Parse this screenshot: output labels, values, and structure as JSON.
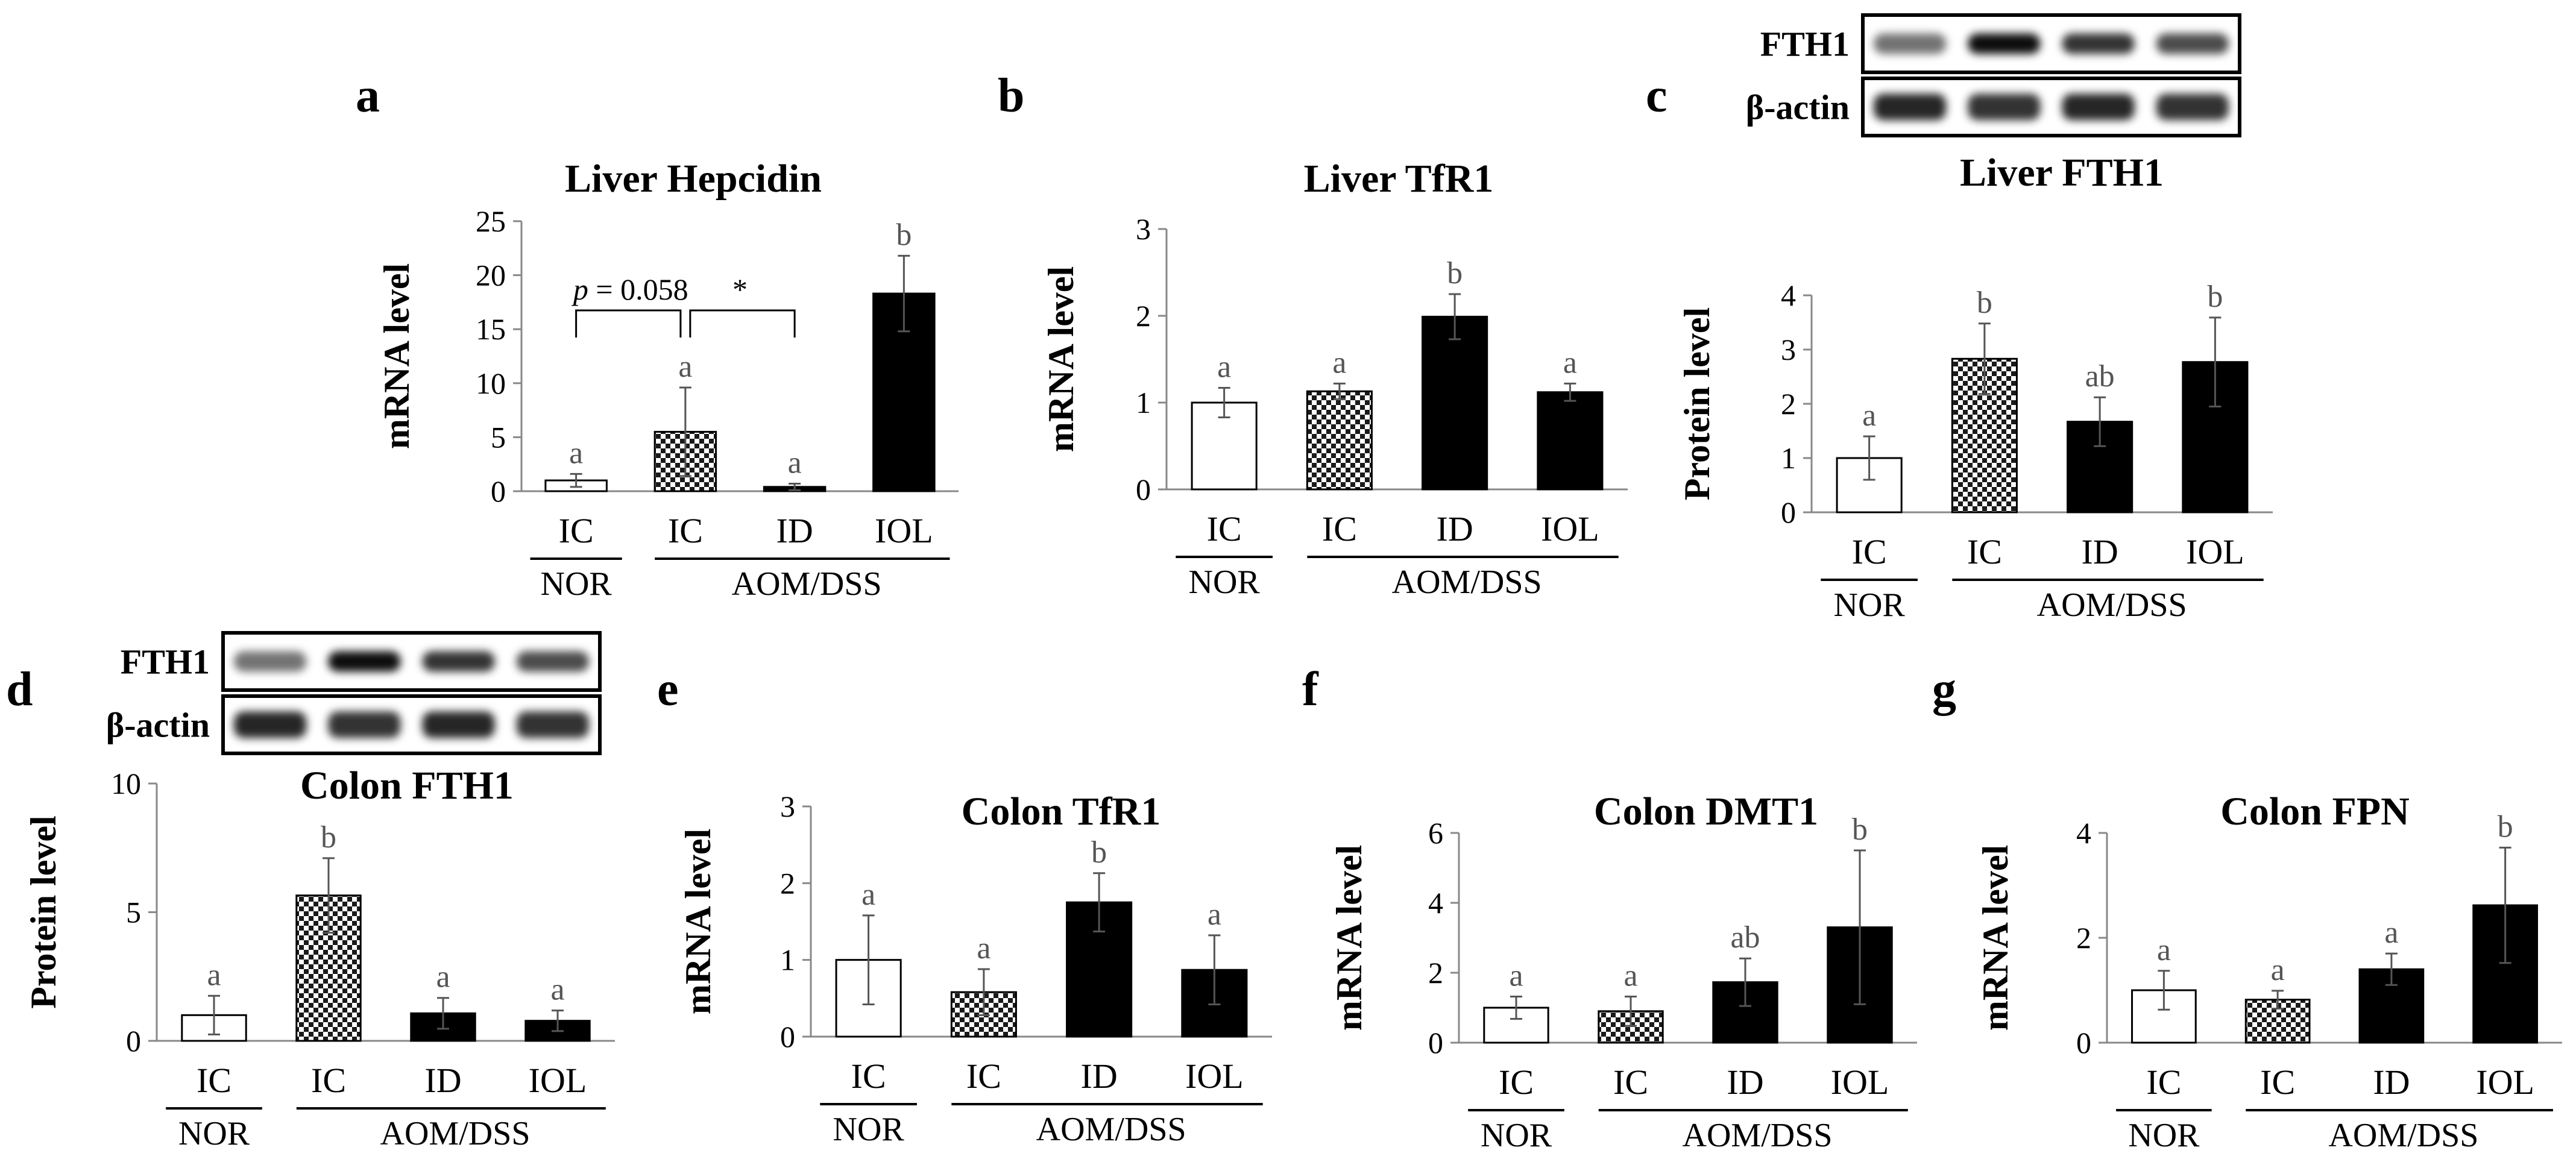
{
  "colors": {
    "ic_nor_fill": "#ffffff",
    "ic_aom_pattern": "checkerboard",
    "id_fill": "#000000",
    "iol_fill": "#000000",
    "errorbar": "#555555",
    "sig_letters": "#555555"
  },
  "chart_data": [
    {
      "panel": "a",
      "type": "bar",
      "title": "Liver Hepcidin",
      "ylabel": "mRNA level",
      "ylim": [
        0,
        25
      ],
      "yticks": [
        "0",
        "5",
        "10",
        "15",
        "20",
        "25"
      ],
      "categories": [
        "IC",
        "IC",
        "ID",
        "IOL"
      ],
      "groups": [
        {
          "label": "NOR"
        },
        {
          "label": "AOM/DSS"
        }
      ],
      "values": [
        1.0,
        5.5,
        0.4,
        18.3
      ],
      "errors": [
        0.6,
        4.1,
        0.3,
        3.5
      ],
      "sig": [
        "a",
        "a",
        "a",
        "b"
      ],
      "annotations": {
        "p_symbol": "p",
        "p_value": " = 0.058",
        "star": "*"
      }
    },
    {
      "panel": "b",
      "type": "bar",
      "title": "Liver TfR1",
      "ylabel": "mRNA level",
      "ylim": [
        0,
        3
      ],
      "yticks": [
        "0",
        "1",
        "2",
        "3"
      ],
      "categories": [
        "IC",
        "IC",
        "ID",
        "IOL"
      ],
      "groups": [
        {
          "label": "NOR"
        },
        {
          "label": "AOM/DSS"
        }
      ],
      "values": [
        1.0,
        1.13,
        1.99,
        1.12
      ],
      "errors": [
        0.17,
        0.09,
        0.26,
        0.1
      ],
      "sig": [
        "a",
        "a",
        "b",
        "a"
      ]
    },
    {
      "panel": "c",
      "type": "bar",
      "title": "Liver FTH1",
      "ylabel": "Protein level",
      "ylim": [
        0,
        4
      ],
      "yticks": [
        "0",
        "1",
        "2",
        "3",
        "4"
      ],
      "categories": [
        "IC",
        "IC",
        "ID",
        "IOL"
      ],
      "groups": [
        {
          "label": "NOR"
        },
        {
          "label": "AOM/DSS"
        }
      ],
      "values": [
        1.0,
        2.83,
        1.67,
        2.77
      ],
      "errors": [
        0.4,
        0.65,
        0.45,
        0.82
      ],
      "sig": [
        "a",
        "b",
        "ab",
        "b"
      ],
      "blot": {
        "rows": [
          "FTH1",
          "β-actin"
        ]
      }
    },
    {
      "panel": "d",
      "type": "bar",
      "title": "Colon FTH1",
      "ylabel": "Protein level",
      "ylim": [
        0,
        10
      ],
      "yticks": [
        "0",
        "5",
        "10"
      ],
      "categories": [
        "IC",
        "IC",
        "ID",
        "IOL"
      ],
      "groups": [
        {
          "label": "NOR"
        },
        {
          "label": "AOM/DSS"
        }
      ],
      "values": [
        1.0,
        5.65,
        1.07,
        0.78
      ],
      "errors": [
        0.75,
        1.45,
        0.6,
        0.4
      ],
      "sig": [
        "a",
        "b",
        "a",
        "a"
      ],
      "blot": {
        "rows": [
          "FTH1",
          "β-actin"
        ]
      }
    },
    {
      "panel": "e",
      "type": "bar",
      "title": "Colon TfR1",
      "ylabel": "mRNA level",
      "ylim": [
        0,
        3
      ],
      "yticks": [
        "0",
        "1",
        "2",
        "3"
      ],
      "categories": [
        "IC",
        "IC",
        "ID",
        "IOL"
      ],
      "groups": [
        {
          "label": "NOR"
        },
        {
          "label": "AOM/DSS"
        }
      ],
      "values": [
        1.0,
        0.58,
        1.75,
        0.87
      ],
      "errors": [
        0.58,
        0.3,
        0.38,
        0.45
      ],
      "sig": [
        "a",
        "a",
        "b",
        "a"
      ]
    },
    {
      "panel": "f",
      "type": "bar",
      "title": "Colon DMT1",
      "ylabel": "mRNA level",
      "ylim": [
        0,
        6
      ],
      "yticks": [
        "0",
        "2",
        "4",
        "6"
      ],
      "categories": [
        "IC",
        "IC",
        "ID",
        "IOL"
      ],
      "groups": [
        {
          "label": "NOR"
        },
        {
          "label": "AOM/DSS"
        }
      ],
      "values": [
        1.0,
        0.9,
        1.73,
        3.3
      ],
      "errors": [
        0.32,
        0.42,
        0.68,
        2.2
      ],
      "sig": [
        "a",
        "a",
        "ab",
        "b"
      ]
    },
    {
      "panel": "g",
      "type": "bar",
      "title": "Colon FPN",
      "ylabel": "mRNA level",
      "ylim": [
        0,
        4
      ],
      "yticks": [
        "0",
        "2",
        "4"
      ],
      "categories": [
        "IC",
        "IC",
        "ID",
        "IOL"
      ],
      "groups": [
        {
          "label": "NOR"
        },
        {
          "label": "AOM/DSS"
        }
      ],
      "values": [
        1.0,
        0.82,
        1.4,
        2.62
      ],
      "errors": [
        0.37,
        0.17,
        0.3,
        1.1
      ],
      "sig": [
        "a",
        "a",
        "a",
        "b"
      ]
    }
  ]
}
